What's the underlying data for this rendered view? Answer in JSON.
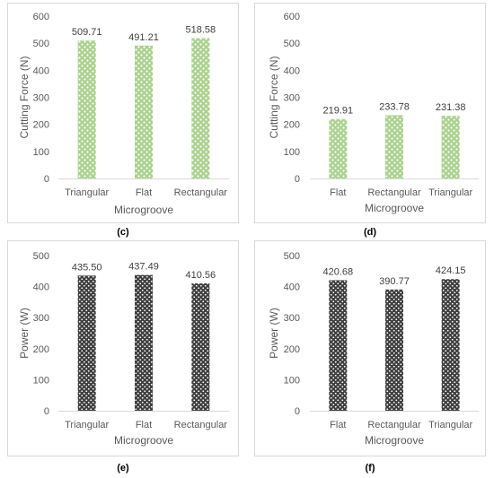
{
  "figure": {
    "panel_labels": [
      "(c)",
      "(d)",
      "(e)",
      "(f)"
    ]
  },
  "chart_data": [
    {
      "type": "bar",
      "panel": "(c)",
      "categories": [
        "Triangular",
        "Flat",
        "Rectangular"
      ],
      "values": [
        509.71,
        491.21,
        518.58
      ],
      "data_labels": [
        "509.71",
        "491.21",
        "518.58"
      ],
      "xlabel": "Microgroove",
      "ylabel": "Cutting Force (N)",
      "ylim": [
        0,
        600
      ],
      "yticks": [
        0,
        100,
        200,
        300,
        400,
        500,
        600
      ],
      "grid": false,
      "bar_color": "#a9d18e",
      "bar_pattern": "light-dots"
    },
    {
      "type": "bar",
      "panel": "(d)",
      "categories": [
        "Flat",
        "Rectangular",
        "Triangular"
      ],
      "values": [
        219.91,
        233.78,
        231.38
      ],
      "data_labels": [
        "219.91",
        "233.78",
        "231.38"
      ],
      "xlabel": "Microgroove",
      "ylabel": "Cutting Force (N)",
      "ylim": [
        0,
        600
      ],
      "yticks": [
        0,
        100,
        200,
        300,
        400,
        500,
        600
      ],
      "grid": false,
      "bar_color": "#a9d18e",
      "bar_pattern": "light-dots"
    },
    {
      "type": "bar",
      "panel": "(e)",
      "categories": [
        "Triangular",
        "Flat",
        "Rectangular"
      ],
      "values": [
        435.5,
        437.49,
        410.56
      ],
      "data_labels": [
        "435.50",
        "437.49",
        "410.56"
      ],
      "xlabel": "Microgroove",
      "ylabel": "Power (W)",
      "ylim": [
        0,
        500
      ],
      "yticks": [
        0,
        100,
        200,
        300,
        400,
        500
      ],
      "grid": false,
      "bar_color": "#404040",
      "bar_pattern": "dark-dots"
    },
    {
      "type": "bar",
      "panel": "(f)",
      "categories": [
        "Flat",
        "Rectangular",
        "Triangular"
      ],
      "values": [
        420.68,
        390.77,
        424.15
      ],
      "data_labels": [
        "420.68",
        "390.77",
        "424.15"
      ],
      "xlabel": "Microgroove",
      "ylabel": "Power (W)",
      "ylim": [
        0,
        500
      ],
      "yticks": [
        0,
        100,
        200,
        300,
        400,
        500
      ],
      "grid": false,
      "bar_color": "#404040",
      "bar_pattern": "dark-dots"
    }
  ]
}
